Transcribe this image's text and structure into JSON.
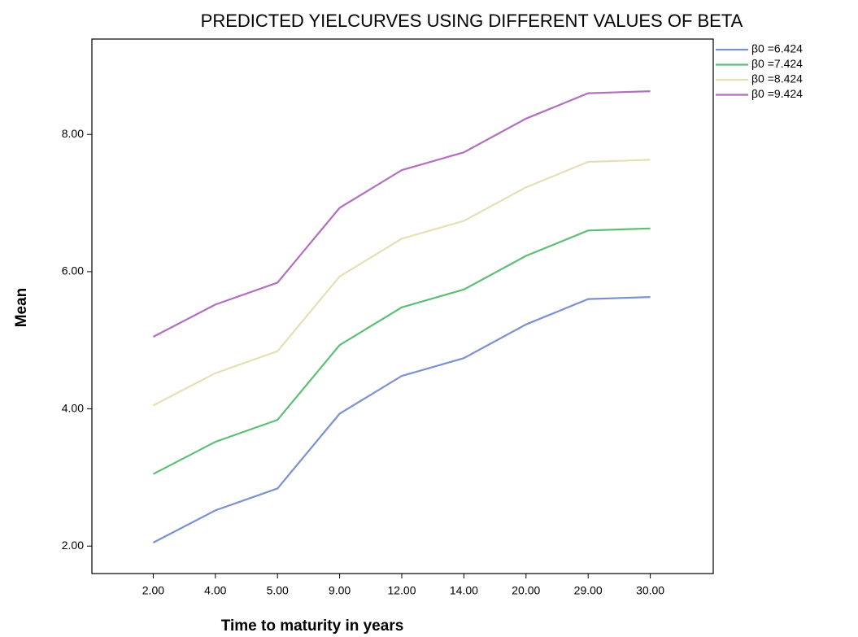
{
  "chart_data": {
    "type": "line",
    "title": "PREDICTED YIELCURVES USING DIFFERENT VALUES OF BETA",
    "x_label": "Time to maturity in years",
    "y_label": "Mean",
    "categories": [
      "2.00",
      "4.00",
      "5.00",
      "9.00",
      "12.00",
      "14.00",
      "20.00",
      "29.00",
      "30.00"
    ],
    "series": [
      {
        "name": "β0 =6.424",
        "color": "#7c91cf",
        "values": [
          2.05,
          2.52,
          2.84,
          3.93,
          4.48,
          4.74,
          5.23,
          5.6,
          5.63
        ]
      },
      {
        "name": "β0 =7.424",
        "color": "#5dbe74",
        "values": [
          3.05,
          3.52,
          3.84,
          4.93,
          5.48,
          5.74,
          6.23,
          6.6,
          6.63
        ]
      },
      {
        "name": "β0 =8.424",
        "color": "#e6dfb6",
        "values": [
          4.05,
          4.52,
          4.84,
          5.93,
          6.48,
          6.74,
          7.23,
          7.6,
          7.63
        ]
      },
      {
        "name": "β0 =9.424",
        "color": "#b26fc0",
        "values": [
          5.05,
          5.52,
          5.84,
          6.93,
          7.48,
          7.74,
          8.23,
          8.6,
          8.63
        ]
      }
    ],
    "ylim": [
      1.6,
      9.39
    ],
    "yticks": [
      {
        "value": 2,
        "label": "2.00"
      },
      {
        "value": 4,
        "label": "4.00"
      },
      {
        "value": 6,
        "label": "6.00"
      },
      {
        "value": 8,
        "label": "8.00"
      }
    ],
    "grid": false,
    "legend": "top-right"
  }
}
